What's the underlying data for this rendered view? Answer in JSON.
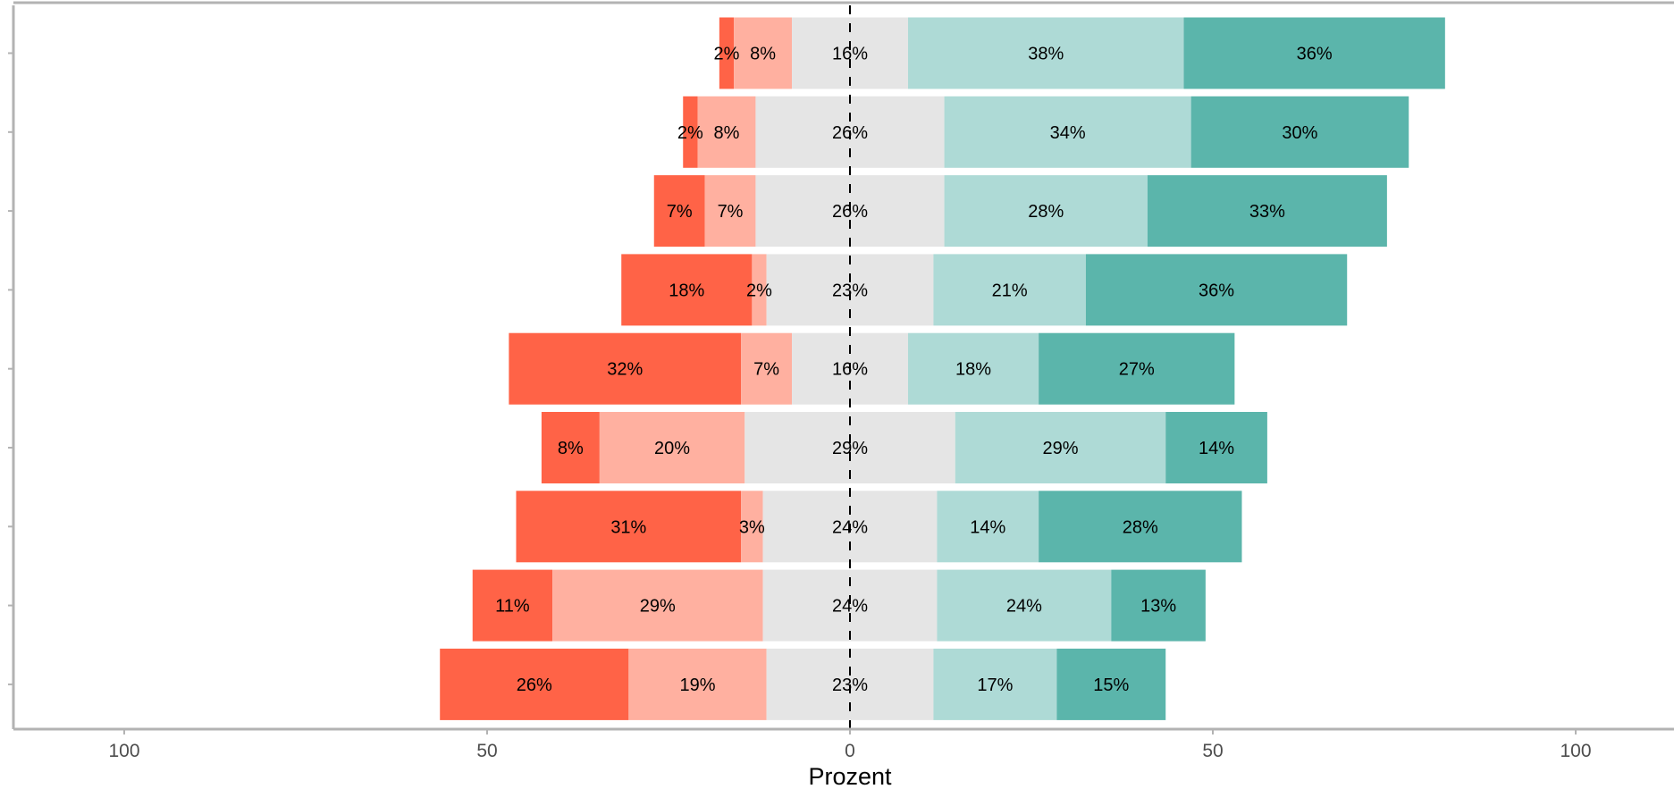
{
  "chart_data": {
    "type": "bar",
    "orientation": "horizontal",
    "stacking": "diverging",
    "xlabel": "Prozent",
    "ylabel": "",
    "xlim": [
      -115,
      115
    ],
    "x_ticks": [
      -100,
      -50,
      0,
      50,
      100
    ],
    "x_tick_labels": [
      "100",
      "50",
      "0",
      "50",
      "100"
    ],
    "grid": true,
    "legend": "none",
    "series": [
      {
        "key": "neg2",
        "color": "#ff6347",
        "values": [
          2,
          2,
          7,
          18,
          32,
          8,
          31,
          11,
          26
        ],
        "labels": [
          "2%",
          "2%",
          "7%",
          "18%",
          "32%",
          "8%",
          "31%",
          "11%",
          "26%"
        ]
      },
      {
        "key": "neg1",
        "color": "#ffb0a0",
        "values": [
          8,
          8,
          7,
          2,
          7,
          20,
          3,
          29,
          19
        ],
        "labels": [
          "8%",
          "8%",
          "7%",
          "2%",
          "7%",
          "20%",
          "3%",
          "29%",
          "19%"
        ]
      },
      {
        "key": "neutral",
        "color": "#e5e5e5",
        "values": [
          16,
          26,
          26,
          23,
          16,
          29,
          24,
          24,
          23
        ],
        "labels": [
          "16%",
          "26%",
          "26%",
          "23%",
          "16%",
          "29%",
          "24%",
          "24%",
          "23%"
        ]
      },
      {
        "key": "pos1",
        "color": "#aedad6",
        "values": [
          38,
          34,
          28,
          21,
          18,
          29,
          14,
          24,
          17
        ],
        "labels": [
          "38%",
          "34%",
          "28%",
          "21%",
          "18%",
          "29%",
          "14%",
          "24%",
          "17%"
        ]
      },
      {
        "key": "pos2",
        "color": "#5bb5ab",
        "values": [
          36,
          30,
          33,
          36,
          27,
          14,
          28,
          13,
          15
        ],
        "labels": [
          "36%",
          "30%",
          "33%",
          "36%",
          "27%",
          "14%",
          "28%",
          "13%",
          "15%"
        ]
      }
    ]
  }
}
